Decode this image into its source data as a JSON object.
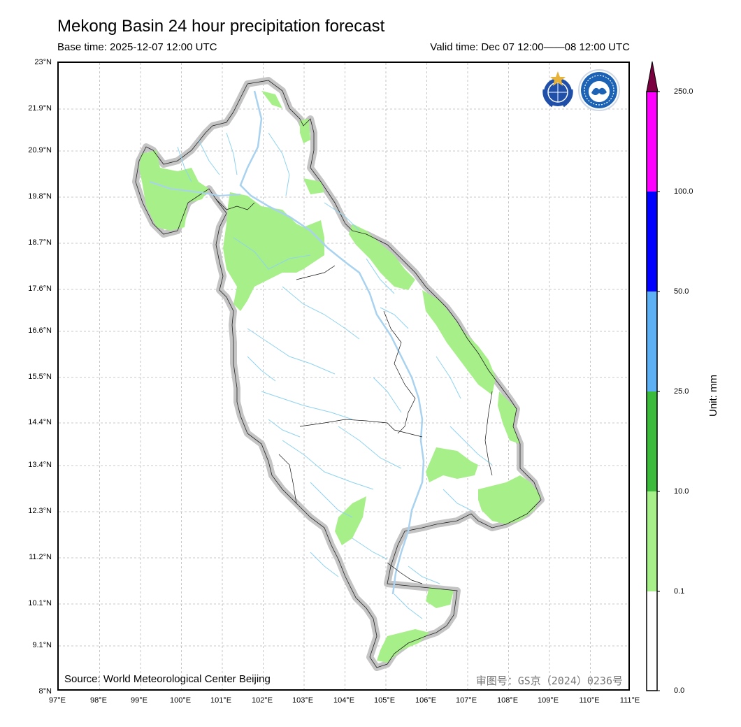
{
  "header": {
    "title": "Mekong Basin 24 hour precipitation forecast",
    "base_time": "Base time: 2025-12-07 12:00 UTC",
    "valid_time": "Valid time: Dec 07 12:00——08 12:00 UTC"
  },
  "axes": {
    "lat_labels": [
      "23°N",
      "21.9°N",
      "20.9°N",
      "19.8°N",
      "18.7°N",
      "17.6°N",
      "16.6°N",
      "15.5°N",
      "14.4°N",
      "13.4°N",
      "12.3°N",
      "11.2°N",
      "10.1°N",
      "9.1°N",
      "8°N"
    ],
    "lon_labels": [
      "97°E",
      "98°E",
      "99°E",
      "100°E",
      "101°E",
      "102°E",
      "103°E",
      "104°E",
      "105°E",
      "106°E",
      "107°E",
      "108°E",
      "109°E",
      "110°E",
      "111°E"
    ]
  },
  "colorbar": {
    "levels": [
      "250.0",
      "100.0",
      "50.0",
      "25.0",
      "10.0",
      "0.1",
      "0.0"
    ],
    "colors": [
      "#ff00ff",
      "#0000ff",
      "#5eb0f5",
      "#3cba3c",
      "#a6ef89",
      "#ffffff"
    ],
    "arrow_color": "#7a0040",
    "unit": "Unit: mm"
  },
  "footer": {
    "source": "Source: World Meteorological Center Beijing",
    "map_approval": "审图号：GS京（2024）0236号"
  },
  "icons": {
    "wmo_logo": "wmo-logo-icon",
    "cma_logo": "cma-logo-icon"
  }
}
